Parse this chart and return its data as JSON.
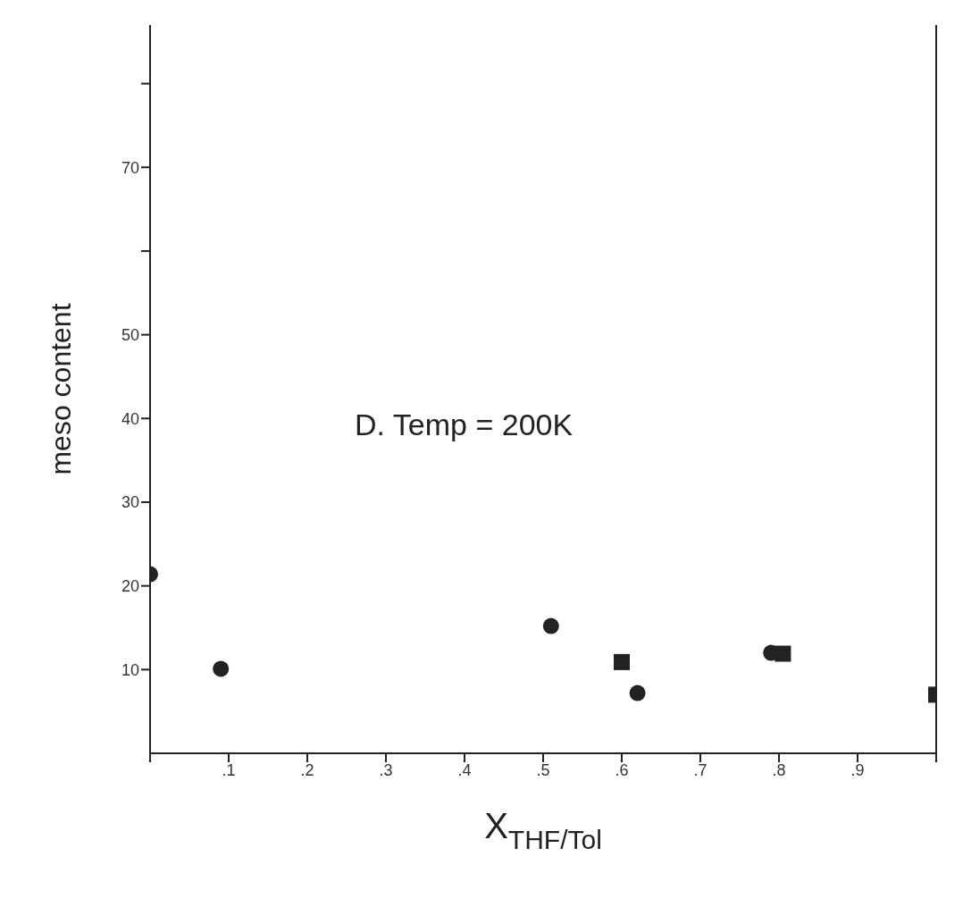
{
  "chart_data": {
    "type": "scatter",
    "xlabel": "X$_{THF/Tol}$",
    "ylabel": "meso content",
    "annotations": [
      "D. Temp = 200K"
    ],
    "xlim": [
      0,
      1
    ],
    "xticks": [
      {
        "value": 0,
        "label": null
      },
      {
        "value": 0.1,
        "label": ".1"
      },
      {
        "value": 0.2,
        "label": ".2"
      },
      {
        "value": 0.3,
        "label": ".3"
      },
      {
        "value": 0.4,
        "label": ".4"
      },
      {
        "value": 0.5,
        "label": ".5"
      },
      {
        "value": 0.6,
        "label": ".6"
      },
      {
        "value": 0.7,
        "label": ".7"
      },
      {
        "value": 0.8,
        "label": ".8"
      },
      {
        "value": 0.9,
        "label": ".9"
      },
      {
        "value": 1,
        "label": null
      }
    ],
    "ylim": [
      0,
      87
    ],
    "yticks": [
      10,
      20,
      30,
      40,
      50,
      {
        "value": 60,
        "label": null
      },
      70,
      {
        "value": 80,
        "label": null
      }
    ],
    "grid": false,
    "series": [
      {
        "color": "#222222",
        "marker": "circle",
        "x": [
          0,
          0.09,
          0.51,
          0.62,
          0.79
        ],
        "values": [
          21.4,
          10.1,
          15.2,
          7.2,
          12.0
        ]
      },
      {
        "color": "#222222",
        "marker": "square",
        "x": [
          0.6,
          0.805,
          1.0
        ],
        "values": [
          10.9,
          11.9,
          7.0
        ]
      }
    ]
  }
}
